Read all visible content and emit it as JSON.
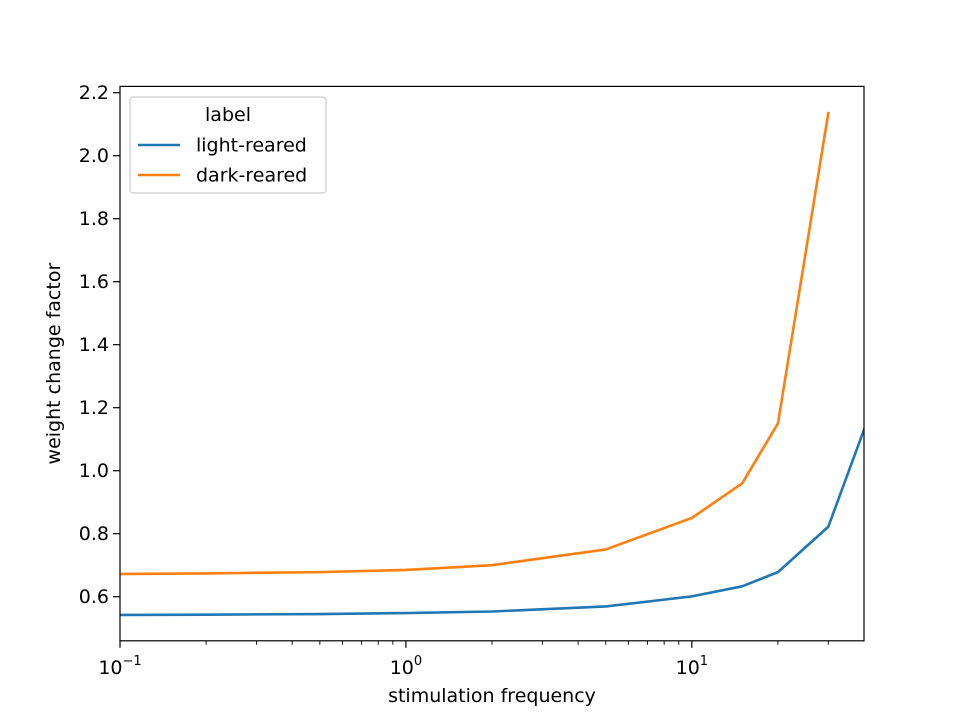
{
  "chart_data": {
    "type": "line",
    "xlabel": "stimulation frequency",
    "ylabel": "weight change factor",
    "x_scale": "log",
    "xlim": [
      0.1,
      40
    ],
    "ylim": [
      0.46,
      2.22
    ],
    "x_ticks": [
      {
        "value": 0.1,
        "base": "10",
        "exp": "−1"
      },
      {
        "value": 1,
        "base": "10",
        "exp": "0"
      },
      {
        "value": 10,
        "base": "10",
        "exp": "1"
      }
    ],
    "y_ticks": [
      {
        "value": 0.6,
        "label": "0.6"
      },
      {
        "value": 0.8,
        "label": "0.8"
      },
      {
        "value": 1.0,
        "label": "1.0"
      },
      {
        "value": 1.2,
        "label": "1.2"
      },
      {
        "value": 1.4,
        "label": "1.4"
      },
      {
        "value": 1.6,
        "label": "1.6"
      },
      {
        "value": 1.8,
        "label": "1.8"
      },
      {
        "value": 2.0,
        "label": "2.0"
      },
      {
        "value": 2.2,
        "label": "2.2"
      }
    ],
    "legend": {
      "title": "label",
      "placement": "upper-left"
    },
    "grid": false,
    "series": [
      {
        "name": "light-reared",
        "color": "#1f77b4",
        "x": [
          0.1,
          0.2,
          0.5,
          1,
          2,
          5,
          10,
          15,
          20,
          30,
          40
        ],
        "y": [
          0.542,
          0.543,
          0.545,
          0.548,
          0.553,
          0.569,
          0.601,
          0.633,
          0.678,
          0.822,
          1.13
        ]
      },
      {
        "name": "dark-reared",
        "color": "#ff7f0e",
        "x": [
          0.1,
          0.2,
          0.5,
          1,
          2,
          5,
          10,
          15,
          20,
          30
        ],
        "y": [
          0.672,
          0.674,
          0.678,
          0.685,
          0.7,
          0.75,
          0.85,
          0.96,
          1.15,
          2.135
        ]
      }
    ]
  }
}
